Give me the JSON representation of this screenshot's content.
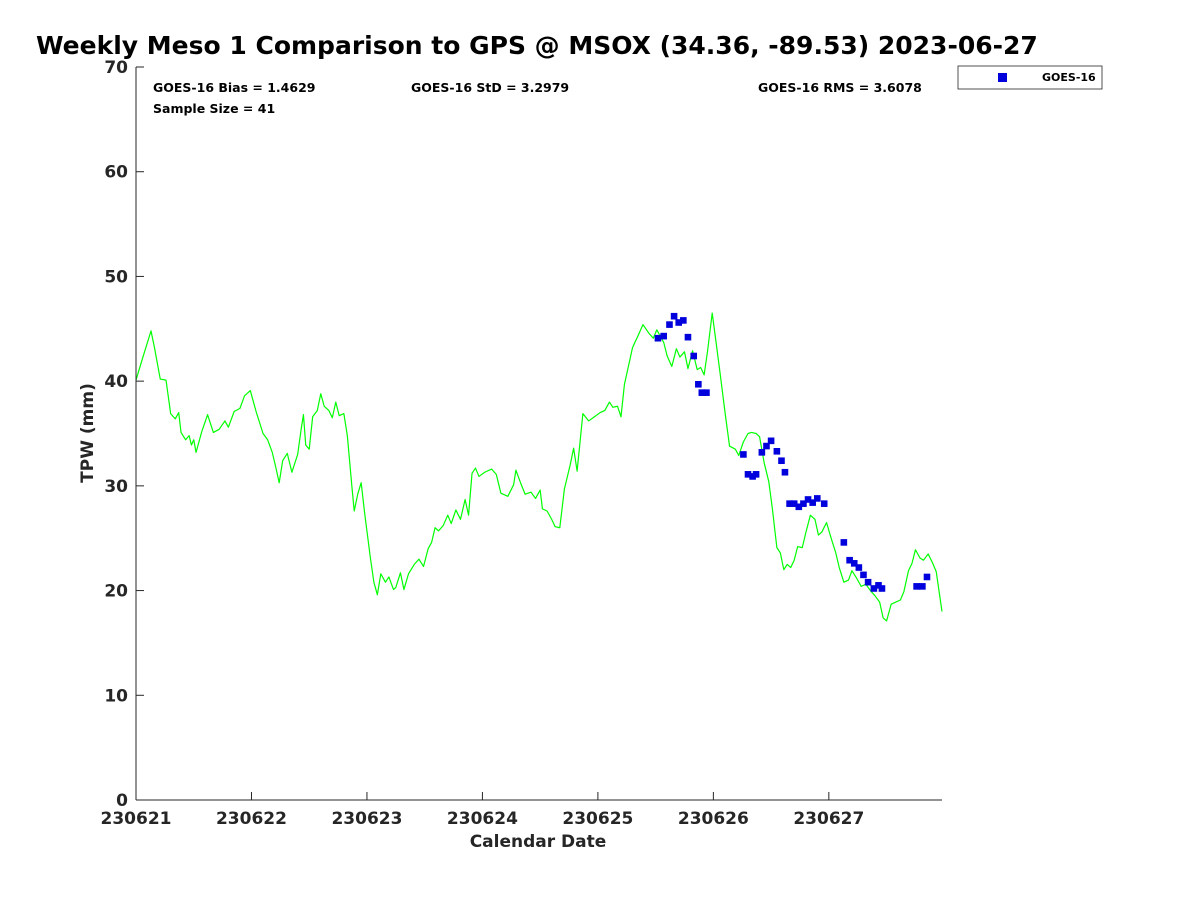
{
  "chart_data": {
    "type": "scatter",
    "title": "Weekly Meso 1 Comparison to GPS @ MSOX (34.36, -89.53) 2023-06-27",
    "xlabel": "Calendar Date",
    "ylabel": "TPW (mm)",
    "x_unit": "days",
    "xlim": [
      0,
      6.98
    ],
    "ylim": [
      0,
      70
    ],
    "x_ticks": [
      {
        "value": 0,
        "label": "230621"
      },
      {
        "value": 1,
        "label": "230622"
      },
      {
        "value": 2,
        "label": "230623"
      },
      {
        "value": 3,
        "label": "230624"
      },
      {
        "value": 4,
        "label": "230625"
      },
      {
        "value": 5,
        "label": "230626"
      },
      {
        "value": 6,
        "label": "230627"
      }
    ],
    "y_ticks": [
      0,
      10,
      20,
      30,
      40,
      50,
      60,
      70
    ],
    "grid": false,
    "legend_position": "outside-top-right",
    "stats": {
      "bias": "GOES-16 Bias = 1.4629",
      "std": "GOES-16 StD = 3.2979",
      "rms": "GOES-16 RMS = 3.6078",
      "sample_size": "Sample Size = 41"
    },
    "series": [
      {
        "name": "",
        "kind": "line",
        "color": "#00ff00",
        "points": [
          [
            0,
            40.1
          ],
          [
            0.06,
            42.3
          ],
          [
            0.13,
            44.8
          ],
          [
            0.16,
            43.2
          ],
          [
            0.21,
            40.2
          ],
          [
            0.26,
            40.1
          ],
          [
            0.3,
            36.9
          ],
          [
            0.34,
            36.4
          ],
          [
            0.37,
            37.0
          ],
          [
            0.39,
            35.1
          ],
          [
            0.43,
            34.4
          ],
          [
            0.46,
            34.8
          ],
          [
            0.48,
            33.9
          ],
          [
            0.5,
            34.4
          ],
          [
            0.52,
            33.2
          ],
          [
            0.57,
            35.2
          ],
          [
            0.62,
            36.8
          ],
          [
            0.67,
            35.1
          ],
          [
            0.72,
            35.4
          ],
          [
            0.77,
            36.2
          ],
          [
            0.8,
            35.6
          ],
          [
            0.85,
            37.1
          ],
          [
            0.9,
            37.4
          ],
          [
            0.94,
            38.6
          ],
          [
            0.99,
            39.1
          ],
          [
            1.04,
            37.1
          ],
          [
            1.1,
            35.0
          ],
          [
            1.14,
            34.4
          ],
          [
            1.18,
            33.2
          ],
          [
            1.21,
            31.8
          ],
          [
            1.24,
            30.3
          ],
          [
            1.27,
            32.4
          ],
          [
            1.31,
            33.1
          ],
          [
            1.35,
            31.3
          ],
          [
            1.4,
            33.0
          ],
          [
            1.43,
            35.4
          ],
          [
            1.45,
            36.8
          ],
          [
            1.47,
            33.9
          ],
          [
            1.5,
            33.5
          ],
          [
            1.53,
            36.6
          ],
          [
            1.57,
            37.2
          ],
          [
            1.6,
            38.8
          ],
          [
            1.63,
            37.6
          ],
          [
            1.67,
            37.2
          ],
          [
            1.7,
            36.5
          ],
          [
            1.73,
            38.0
          ],
          [
            1.76,
            36.7
          ],
          [
            1.8,
            36.9
          ],
          [
            1.83,
            34.8
          ],
          [
            1.87,
            29.9
          ],
          [
            1.89,
            27.6
          ],
          [
            1.92,
            29.2
          ],
          [
            1.95,
            30.3
          ],
          [
            1.98,
            27.4
          ],
          [
            2.03,
            23.1
          ],
          [
            2.06,
            20.8
          ],
          [
            2.09,
            19.6
          ],
          [
            2.12,
            21.6
          ],
          [
            2.16,
            20.8
          ],
          [
            2.19,
            21.3
          ],
          [
            2.23,
            20.1
          ],
          [
            2.25,
            20.3
          ],
          [
            2.29,
            21.7
          ],
          [
            2.32,
            20.1
          ],
          [
            2.36,
            21.6
          ],
          [
            2.41,
            22.5
          ],
          [
            2.45,
            23.0
          ],
          [
            2.49,
            22.3
          ],
          [
            2.53,
            24.0
          ],
          [
            2.56,
            24.6
          ],
          [
            2.59,
            26.0
          ],
          [
            2.62,
            25.7
          ],
          [
            2.66,
            26.2
          ],
          [
            2.7,
            27.2
          ],
          [
            2.73,
            26.4
          ],
          [
            2.77,
            27.7
          ],
          [
            2.81,
            26.8
          ],
          [
            2.85,
            28.7
          ],
          [
            2.88,
            27.2
          ],
          [
            2.91,
            31.2
          ],
          [
            2.94,
            31.7
          ],
          [
            2.97,
            30.9
          ],
          [
            3.02,
            31.3
          ],
          [
            3.08,
            31.6
          ],
          [
            3.12,
            31.1
          ],
          [
            3.16,
            29.3
          ],
          [
            3.22,
            29.0
          ],
          [
            3.27,
            30.1
          ],
          [
            3.29,
            31.5
          ],
          [
            3.33,
            30.3
          ],
          [
            3.37,
            29.2
          ],
          [
            3.42,
            29.4
          ],
          [
            3.46,
            28.8
          ],
          [
            3.5,
            29.6
          ],
          [
            3.52,
            27.8
          ],
          [
            3.56,
            27.6
          ],
          [
            3.6,
            26.8
          ],
          [
            3.63,
            26.1
          ],
          [
            3.67,
            26.0
          ],
          [
            3.71,
            29.7
          ],
          [
            3.76,
            32.0
          ],
          [
            3.79,
            33.6
          ],
          [
            3.82,
            31.4
          ],
          [
            3.87,
            36.9
          ],
          [
            3.92,
            36.2
          ],
          [
            3.97,
            36.6
          ],
          [
            4.02,
            37.0
          ],
          [
            4.06,
            37.2
          ],
          [
            4.1,
            38.0
          ],
          [
            4.13,
            37.5
          ],
          [
            4.17,
            37.6
          ],
          [
            4.2,
            36.6
          ],
          [
            4.23,
            39.7
          ],
          [
            4.26,
            41.2
          ],
          [
            4.3,
            43.2
          ],
          [
            4.35,
            44.4
          ],
          [
            4.39,
            45.4
          ],
          [
            4.44,
            44.6
          ],
          [
            4.48,
            44.1
          ],
          [
            4.51,
            44.9
          ],
          [
            4.54,
            44.3
          ],
          [
            4.57,
            43.7
          ],
          [
            4.6,
            42.4
          ],
          [
            4.64,
            41.4
          ],
          [
            4.68,
            43.1
          ],
          [
            4.71,
            42.3
          ],
          [
            4.75,
            42.8
          ],
          [
            4.78,
            41.2
          ],
          [
            4.82,
            42.9
          ],
          [
            4.86,
            41.1
          ],
          [
            4.89,
            41.3
          ],
          [
            4.92,
            40.6
          ],
          [
            4.95,
            42.9
          ],
          [
            4.99,
            46.5
          ],
          [
            5.02,
            44.0
          ],
          [
            5.06,
            40.6
          ],
          [
            5.1,
            37.1
          ],
          [
            5.14,
            33.8
          ],
          [
            5.19,
            33.5
          ],
          [
            5.22,
            32.9
          ],
          [
            5.26,
            34.2
          ],
          [
            5.3,
            35.0
          ],
          [
            5.33,
            35.1
          ],
          [
            5.37,
            35.0
          ],
          [
            5.4,
            34.7
          ],
          [
            5.44,
            32.2
          ],
          [
            5.48,
            30.4
          ],
          [
            5.51,
            27.9
          ],
          [
            5.55,
            24.1
          ],
          [
            5.58,
            23.6
          ],
          [
            5.61,
            22.0
          ],
          [
            5.64,
            22.5
          ],
          [
            5.67,
            22.2
          ],
          [
            5.7,
            22.9
          ],
          [
            5.73,
            24.2
          ],
          [
            5.77,
            24.1
          ],
          [
            5.8,
            25.5
          ],
          [
            5.84,
            27.2
          ],
          [
            5.88,
            26.8
          ],
          [
            5.91,
            25.3
          ],
          [
            5.94,
            25.6
          ],
          [
            5.98,
            26.5
          ],
          [
            6.02,
            25.0
          ],
          [
            6.06,
            23.6
          ],
          [
            6.09,
            22.2
          ],
          [
            6.13,
            20.8
          ],
          [
            6.17,
            21.0
          ],
          [
            6.2,
            21.9
          ],
          [
            6.24,
            21.2
          ],
          [
            6.28,
            20.4
          ],
          [
            6.32,
            20.6
          ],
          [
            6.36,
            20.0
          ],
          [
            6.4,
            19.5
          ],
          [
            6.44,
            18.9
          ],
          [
            6.47,
            17.4
          ],
          [
            6.5,
            17.1
          ],
          [
            6.54,
            18.7
          ],
          [
            6.58,
            18.9
          ],
          [
            6.62,
            19.1
          ],
          [
            6.65,
            19.9
          ],
          [
            6.69,
            21.9
          ],
          [
            6.72,
            22.6
          ],
          [
            6.75,
            23.9
          ],
          [
            6.79,
            23.1
          ],
          [
            6.82,
            22.9
          ],
          [
            6.86,
            23.5
          ],
          [
            6.9,
            22.6
          ],
          [
            6.93,
            21.8
          ],
          [
            6.98,
            18.0
          ]
        ]
      },
      {
        "name": "GOES-16",
        "kind": "scatter",
        "color": "#0000dd",
        "points": [
          [
            4.52,
            44.1
          ],
          [
            4.57,
            44.3
          ],
          [
            4.62,
            45.4
          ],
          [
            4.66,
            46.2
          ],
          [
            4.7,
            45.6
          ],
          [
            4.74,
            45.8
          ],
          [
            4.78,
            44.2
          ],
          [
            4.83,
            42.4
          ],
          [
            4.87,
            39.7
          ],
          [
            4.9,
            38.9
          ],
          [
            4.94,
            38.9
          ],
          [
            5.26,
            33.0
          ],
          [
            5.3,
            31.1
          ],
          [
            5.34,
            30.9
          ],
          [
            5.37,
            31.1
          ],
          [
            5.42,
            33.2
          ],
          [
            5.46,
            33.8
          ],
          [
            5.5,
            34.3
          ],
          [
            5.55,
            33.3
          ],
          [
            5.59,
            32.4
          ],
          [
            5.62,
            31.3
          ],
          [
            5.66,
            28.3
          ],
          [
            5.7,
            28.3
          ],
          [
            5.74,
            28.0
          ],
          [
            5.78,
            28.3
          ],
          [
            5.82,
            28.7
          ],
          [
            5.86,
            28.4
          ],
          [
            5.9,
            28.8
          ],
          [
            5.96,
            28.3
          ],
          [
            6.13,
            24.6
          ],
          [
            6.18,
            22.9
          ],
          [
            6.22,
            22.6
          ],
          [
            6.26,
            22.2
          ],
          [
            6.3,
            21.5
          ],
          [
            6.34,
            20.8
          ],
          [
            6.39,
            20.2
          ],
          [
            6.43,
            20.5
          ],
          [
            6.46,
            20.2
          ],
          [
            6.76,
            20.4
          ],
          [
            6.81,
            20.4
          ],
          [
            6.85,
            21.3
          ]
        ]
      }
    ]
  }
}
